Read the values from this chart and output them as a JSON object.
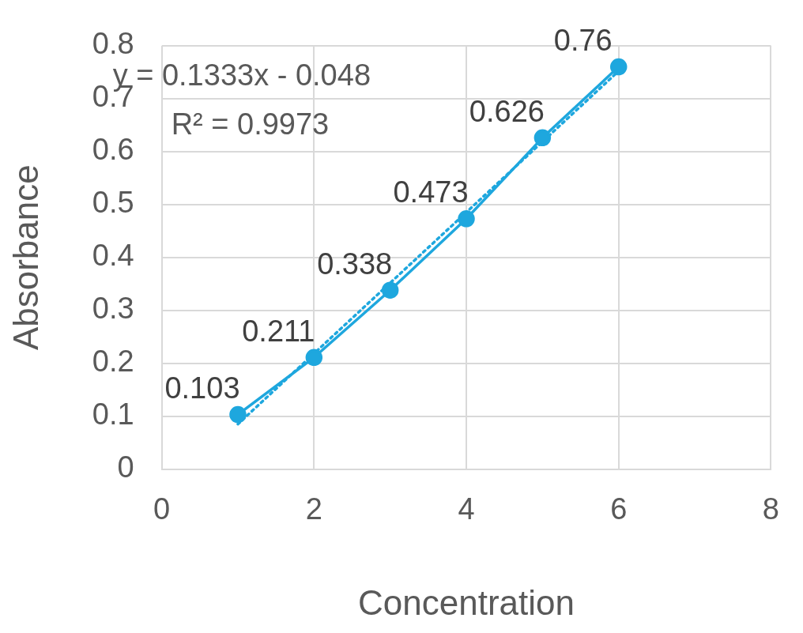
{
  "chart_data": {
    "type": "scatter",
    "xlabel": "Concentration",
    "ylabel": "Absorbance",
    "x": [
      1,
      2,
      3,
      4,
      5,
      6
    ],
    "series": [
      {
        "type": "line",
        "color": "#1ea7de",
        "values": [
          0.103,
          0.211,
          0.338,
          0.473,
          0.626,
          0.76
        ],
        "marker": "circle",
        "line_style": "solid",
        "data_labels": true
      },
      {
        "type": "line",
        "color": "#1ea7de",
        "x": [
          1,
          6
        ],
        "values": [
          0.085,
          0.752
        ],
        "marker": "none",
        "line_style": "dotted"
      }
    ],
    "annotations": [
      "y = 0.1333x - 0.048",
      "R² = 0.9973"
    ],
    "xlim": [
      0,
      8
    ],
    "xticks": [
      0,
      2,
      4,
      6,
      8
    ],
    "ylim": [
      0,
      0.8
    ],
    "yticks": [
      0,
      0.1,
      0.2,
      0.3,
      0.4,
      0.5,
      0.6,
      0.7,
      0.8
    ],
    "grid": true,
    "legend": false
  }
}
